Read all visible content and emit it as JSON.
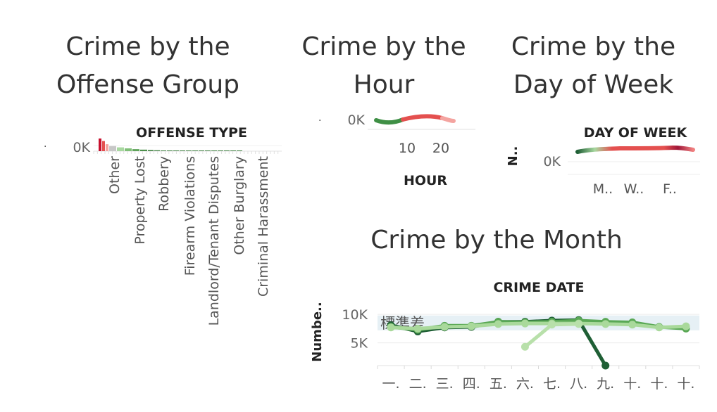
{
  "titles": {
    "offense_group": [
      "Crime by the",
      "Offense Group"
    ],
    "hour": [
      "Crime by the",
      "Hour"
    ],
    "day_of_week": [
      "Crime by the",
      "Day of Week"
    ],
    "month": "Crime by the Month"
  },
  "chart_data": [
    {
      "id": "offense",
      "type": "bar",
      "title": "Crime by the Offense Group",
      "xlabel": "OFFENSE TYPE",
      "ylabel": ".",
      "y_tick_label": "0K",
      "categories": [
        "Other",
        "Property Lost",
        "Robbery",
        "Firearm Violations",
        "Landlord/Tenant Disputes",
        "Other Burglary",
        "Criminal Harassment"
      ],
      "bar_heights_relative": [
        1.0,
        0.8,
        0.55,
        0.4,
        0.3,
        0.22,
        0.16,
        0.12,
        0.09,
        0.07,
        0.05,
        0.04,
        0.03,
        0.02,
        0.02,
        0.01,
        0.01,
        0.01,
        0.01,
        0.01,
        0.01,
        0.01,
        0.01
      ],
      "bar_colors": [
        "#c8102e",
        "#e4504f",
        "#f4a4a0",
        "#c7c7c7",
        "#a8d8a0",
        "#7fbf77",
        "#5ea35a",
        "#4c8f4b",
        "#3f7f40",
        "#3f7f40",
        "#3f7f40",
        "#3f7f40",
        "#3f7f40",
        "#3f7f40",
        "#3f7f40",
        "#3f7f40",
        "#3f7f40",
        "#3f7f40",
        "#3f7f40",
        "#3f7f40",
        "#3f7f40",
        "#3f7f40",
        "#3f7f40"
      ]
    },
    {
      "id": "hour",
      "type": "line",
      "title": "Crime by the Hour",
      "xlabel": "HOUR",
      "y_tick_label": "0K",
      "x_ticks": [
        "10",
        "20"
      ],
      "xlim": [
        0,
        23
      ]
    },
    {
      "id": "dow",
      "type": "line",
      "title": "Crime by the Day of Week",
      "xlabel": "DAY OF WEEK",
      "ylabel": "N..",
      "y_tick_label": "0K",
      "x_ticks": [
        "M..",
        "W..",
        "F.."
      ]
    },
    {
      "id": "month",
      "type": "line",
      "title": "Crime by the Month",
      "xlabel": "CRIME DATE",
      "ylabel": "Numbe..",
      "band_label": "標準差",
      "categories": [
        "一.",
        "二.",
        "三.",
        "四.",
        "五.",
        "六.",
        "七.",
        "八.",
        "九.",
        "十.",
        "十.",
        "十."
      ],
      "y_ticks": [
        {
          "value": 5000,
          "label": "5K"
        },
        {
          "value": 10000,
          "label": "10K"
        }
      ],
      "ylim": [
        1000,
        11500
      ],
      "band": [
        7200,
        9800
      ],
      "series": [
        {
          "color": "#1f5f35",
          "values": [
            8100,
            7000,
            7700,
            7800,
            8700,
            8700,
            8900,
            9000,
            1000,
            null,
            null,
            null
          ]
        },
        {
          "color": "#5aa855",
          "values": [
            7800,
            7300,
            8000,
            8000,
            8700,
            8600,
            8700,
            8900,
            8700,
            8600,
            7800,
            7500
          ]
        },
        {
          "color": "#a9d99b",
          "values": [
            7700,
            7500,
            7800,
            7900,
            8300,
            8400,
            8400,
            8400,
            8300,
            8200,
            7700,
            7900
          ]
        },
        {
          "color": "#b8e0aa",
          "values": [
            null,
            null,
            null,
            null,
            null,
            4300,
            8200,
            8300,
            null,
            null,
            null,
            null
          ]
        }
      ]
    }
  ]
}
